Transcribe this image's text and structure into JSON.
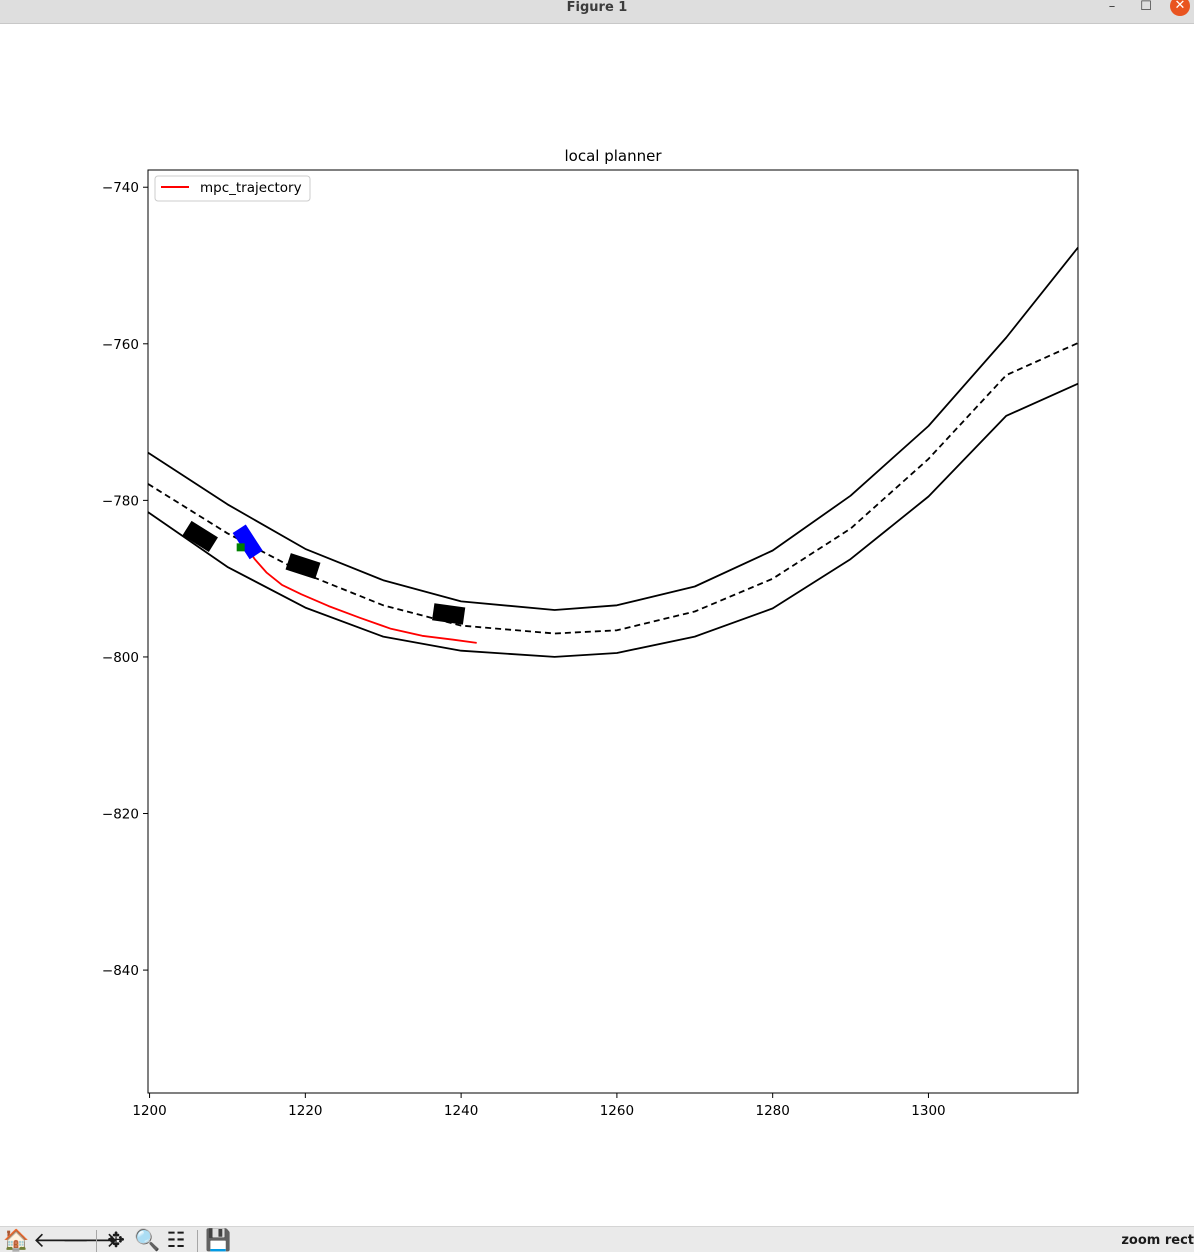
{
  "window": {
    "title": "Figure 1",
    "controls": {
      "minimize": "–",
      "maximize": "☐",
      "close": "✕"
    }
  },
  "toolbar": {
    "buttons": [
      {
        "name": "home-icon",
        "glyph": "🏠"
      },
      {
        "name": "back-icon",
        "glyph": "🡐"
      },
      {
        "name": "forward-icon",
        "glyph": "🡒"
      },
      {
        "name": "pan-icon",
        "glyph": "✥"
      },
      {
        "name": "zoom-icon",
        "glyph": "🔍"
      },
      {
        "name": "configure-subplots-icon",
        "glyph": "☷"
      },
      {
        "name": "save-icon",
        "glyph": "💾"
      }
    ],
    "status": "zoom rect"
  },
  "chart_data": {
    "type": "line",
    "title": "local planner",
    "xlim": [
      1199.8,
      1319.2
    ],
    "ylim": [
      -855.7,
      -737.8
    ],
    "xticks": [
      1200,
      1220,
      1240,
      1260,
      1280,
      1300
    ],
    "yticks": [
      -740,
      -760,
      -780,
      -800,
      -820,
      -840
    ],
    "tick_labels": {
      "x": [
        "1200",
        "1220",
        "1240",
        "1260",
        "1280",
        "1300"
      ],
      "y": [
        "−740",
        "−760",
        "−780",
        "−800",
        "−820",
        "−840"
      ]
    },
    "legend": {
      "position": "upper left",
      "entries": [
        {
          "label": "mpc_trajectory",
          "color": "#ff0000"
        }
      ]
    },
    "colors": {
      "boundary": "#000000",
      "centerline": "#000000",
      "ego": "#0000ff",
      "obstacle": "#000000",
      "target": "#008000",
      "trajectory": "#ff0000"
    },
    "series": [
      {
        "style": "solid",
        "role": "road boundary (upper)",
        "x": [
          1199.8,
          1210,
          1220,
          1230,
          1240,
          1252,
          1260,
          1270,
          1280,
          1290,
          1300,
          1310,
          1319.2
        ],
        "y": [
          -773.9,
          -780.5,
          -786.2,
          -790.2,
          -792.9,
          -794.0,
          -793.4,
          -791.0,
          -786.4,
          -779.4,
          -770.5,
          -759.2,
          -747.7
        ]
      },
      {
        "style": "dashed",
        "role": "centerline",
        "x": [
          1199.8,
          1210,
          1220,
          1230,
          1240,
          1252,
          1260,
          1270,
          1280,
          1290,
          1300,
          1310,
          1319.2
        ],
        "y": [
          -777.9,
          -784.2,
          -789.4,
          -793.4,
          -796.0,
          -797.0,
          -796.6,
          -794.2,
          -790.0,
          -783.6,
          -774.7,
          -764.0,
          -759.9
        ]
      },
      {
        "style": "solid",
        "role": "road boundary (lower)",
        "x": [
          1199.8,
          1210,
          1220,
          1230,
          1240,
          1252,
          1260,
          1270,
          1280,
          1290,
          1300,
          1310,
          1319.2
        ],
        "y": [
          -781.5,
          -788.5,
          -793.7,
          -797.4,
          -799.2,
          -800.0,
          -799.5,
          -797.4,
          -793.8,
          -787.5,
          -779.5,
          -769.2,
          -765.1
        ]
      },
      {
        "name": "mpc_trajectory",
        "style": "solid",
        "x": [
          1212.5,
          1213.5,
          1215.0,
          1217.0,
          1219.5,
          1223.0,
          1227.0,
          1231.0,
          1235.0,
          1239.0,
          1242.0
        ],
        "y": [
          -786.0,
          -787.5,
          -789.2,
          -790.8,
          -792.0,
          -793.5,
          -795.0,
          -796.4,
          -797.3,
          -797.8,
          -798.2
        ]
      }
    ],
    "obstacles": [
      {
        "x": 1206.5,
        "y": -784.6,
        "length": 4.0,
        "width": 2.2,
        "heading_deg": -32
      },
      {
        "x": 1219.7,
        "y": -788.4,
        "length": 4.0,
        "width": 2.2,
        "heading_deg": -18
      },
      {
        "x": 1238.4,
        "y": -794.5,
        "length": 4.0,
        "width": 2.2,
        "heading_deg": -8
      }
    ],
    "ego_vehicle": {
      "x": 1212.6,
      "y": -785.3,
      "length": 4.0,
      "width": 2.0,
      "heading_deg": -57
    },
    "target_marker": {
      "x": 1211.7,
      "y": -786.0
    }
  }
}
